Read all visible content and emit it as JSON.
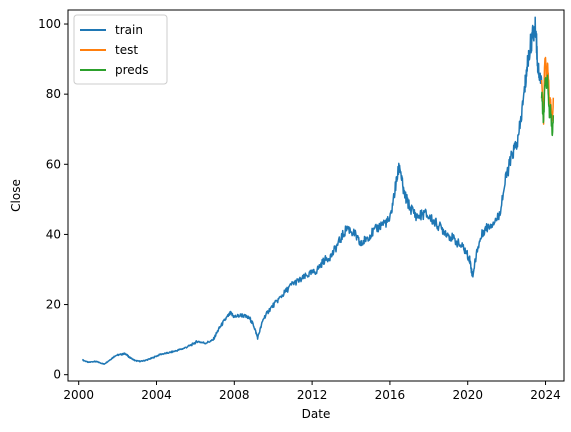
{
  "chart_data": {
    "type": "line",
    "title": "",
    "xlabel": "Date",
    "ylabel": "Close",
    "xlim": [
      1999.45,
      2024.95
    ],
    "ylim": [
      -1.8,
      104
    ],
    "x_ticks": [
      2000,
      2004,
      2008,
      2012,
      2016,
      2020,
      2024
    ],
    "x_tick_labels": [
      "2000",
      "2004",
      "2008",
      "2012",
      "2016",
      "2020",
      "2024"
    ],
    "y_ticks": [
      0,
      20,
      40,
      60,
      80,
      100
    ],
    "y_tick_labels": [
      "0",
      "20",
      "40",
      "60",
      "80",
      "100"
    ],
    "grid": false,
    "legend": {
      "position": "top-left",
      "entries": [
        "train",
        "test",
        "preds"
      ]
    },
    "series": [
      {
        "name": "train",
        "color": "#1f77b4",
        "x": [
          2000.2,
          2000.5,
          2000.8,
          2001.0,
          2001.3,
          2001.6,
          2001.9,
          2002.2,
          2002.4,
          2002.6,
          2002.9,
          2003.2,
          2003.5,
          2003.8,
          2004.2,
          2004.6,
          2005.0,
          2005.4,
          2005.8,
          2006.1,
          2006.5,
          2006.9,
          2007.2,
          2007.5,
          2007.8,
          2008.0,
          2008.4,
          2008.8,
          2009.0,
          2009.2,
          2009.5,
          2009.8,
          2010.2,
          2010.6,
          2011.0,
          2011.4,
          2011.8,
          2012.2,
          2012.6,
          2013.0,
          2013.4,
          2013.8,
          2014.2,
          2014.5,
          2014.8,
          2015.2,
          2015.6,
          2016.0,
          2016.3,
          2016.5,
          2016.7,
          2017.0,
          2017.4,
          2017.8,
          2018.2,
          2018.6,
          2019.0,
          2019.4,
          2019.8,
          2020.1,
          2020.25,
          2020.5,
          2020.8,
          2021.2,
          2021.6,
          2022.0,
          2022.3,
          2022.6,
          2022.9,
          2023.1,
          2023.3,
          2023.5,
          2023.6,
          2023.8
        ],
        "values": [
          4.2,
          3.5,
          3.8,
          3.6,
          3.0,
          4.2,
          5.5,
          5.8,
          6.0,
          5.0,
          4.0,
          3.8,
          4.2,
          4.8,
          5.8,
          6.2,
          6.8,
          7.5,
          8.5,
          9.5,
          9.0,
          9.8,
          13.0,
          15.5,
          17.5,
          16.5,
          17.0,
          16.0,
          14.0,
          10.5,
          16.0,
          18.5,
          21.0,
          23.5,
          26.0,
          27.0,
          28.5,
          29.5,
          32.5,
          34.0,
          38.0,
          42.0,
          40.0,
          37.0,
          39.0,
          41.0,
          43.0,
          44.0,
          54.0,
          60.0,
          52.0,
          48.0,
          45.0,
          46.0,
          44.0,
          42.0,
          40.0,
          38.0,
          36.0,
          33.0,
          28.0,
          36.0,
          41.0,
          43.0,
          45.0,
          57.0,
          63.0,
          67.0,
          80.0,
          90.0,
          96.0,
          99.0,
          88.0,
          83.0
        ]
      },
      {
        "name": "test",
        "color": "#ff7f0e",
        "x": [
          2023.8,
          2023.85,
          2023.9,
          2023.95,
          2024.0,
          2024.05,
          2024.1,
          2024.15,
          2024.2,
          2024.25,
          2024.3,
          2024.35,
          2024.4
        ],
        "values": [
          84.0,
          80.0,
          71.0,
          88.0,
          89.0,
          82.0,
          88.0,
          84.0,
          77.0,
          79.0,
          75.0,
          73.0,
          79.0
        ]
      },
      {
        "name": "preds",
        "color": "#2ca02c",
        "x": [
          2023.8,
          2023.85,
          2023.9,
          2023.95,
          2024.0,
          2024.05,
          2024.1,
          2024.15,
          2024.2,
          2024.25,
          2024.3,
          2024.35,
          2024.4
        ],
        "values": [
          80.0,
          76.0,
          72.0,
          80.0,
          85.0,
          81.0,
          84.0,
          80.0,
          74.0,
          76.0,
          72.0,
          69.0,
          74.0
        ]
      }
    ]
  }
}
